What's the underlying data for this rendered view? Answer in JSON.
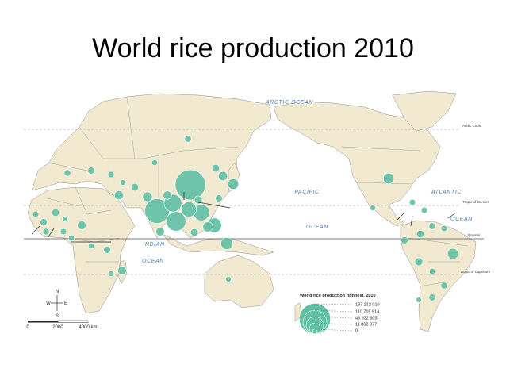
{
  "title": "World rice production 2010",
  "map": {
    "oceans": [
      "ARCTIC OCEAN",
      "PACIFIC",
      "OCEAN",
      "ATLANTIC",
      "OCEAN",
      "INDIAN",
      "OCEAN"
    ],
    "lines": [
      "Arctic Circle",
      "Tropic of Cancer",
      "Equator",
      "Tropic of Capricorn"
    ],
    "compass": {
      "n": "N",
      "w": "W",
      "e": "E",
      "s": "S"
    },
    "scale_labels": [
      "0",
      "2000",
      "4000 km"
    ]
  },
  "legend": {
    "title": "World rice production (tonnes), 2010",
    "values": [
      {
        "value": 197212010,
        "label": "197 212 010"
      },
      {
        "value": 110715514,
        "label": "110 715 514"
      },
      {
        "value": 48932303,
        "label": "48 932 303"
      },
      {
        "value": 11862377,
        "label": "11 862 377"
      },
      0
    ]
  },
  "bubbles": [
    197000000,
    120000000,
    66000000,
    50000000,
    40000000,
    33000000,
    31000000,
    16000000,
    11300000,
    11000000,
    10600000,
    7200000,
    8200000,
    6000000,
    5200000,
    4000000,
    4300000,
    4700000,
    4500000,
    2500000,
    3000000,
    2400000,
    2500000,
    3000000,
    1500000,
    900000,
    1000000,
    300000,
    800000,
    150000,
    2300000,
    1500000,
    900000,
    700000,
    600000,
    1500000,
    200000,
    300000,
    1200000,
    1100000,
    1700000,
    1000000,
    500000,
    200000,
    500000,
    600000,
    200000,
    1500000,
    2500000,
    100000,
    500000,
    500000,
    250000
  ]
}
